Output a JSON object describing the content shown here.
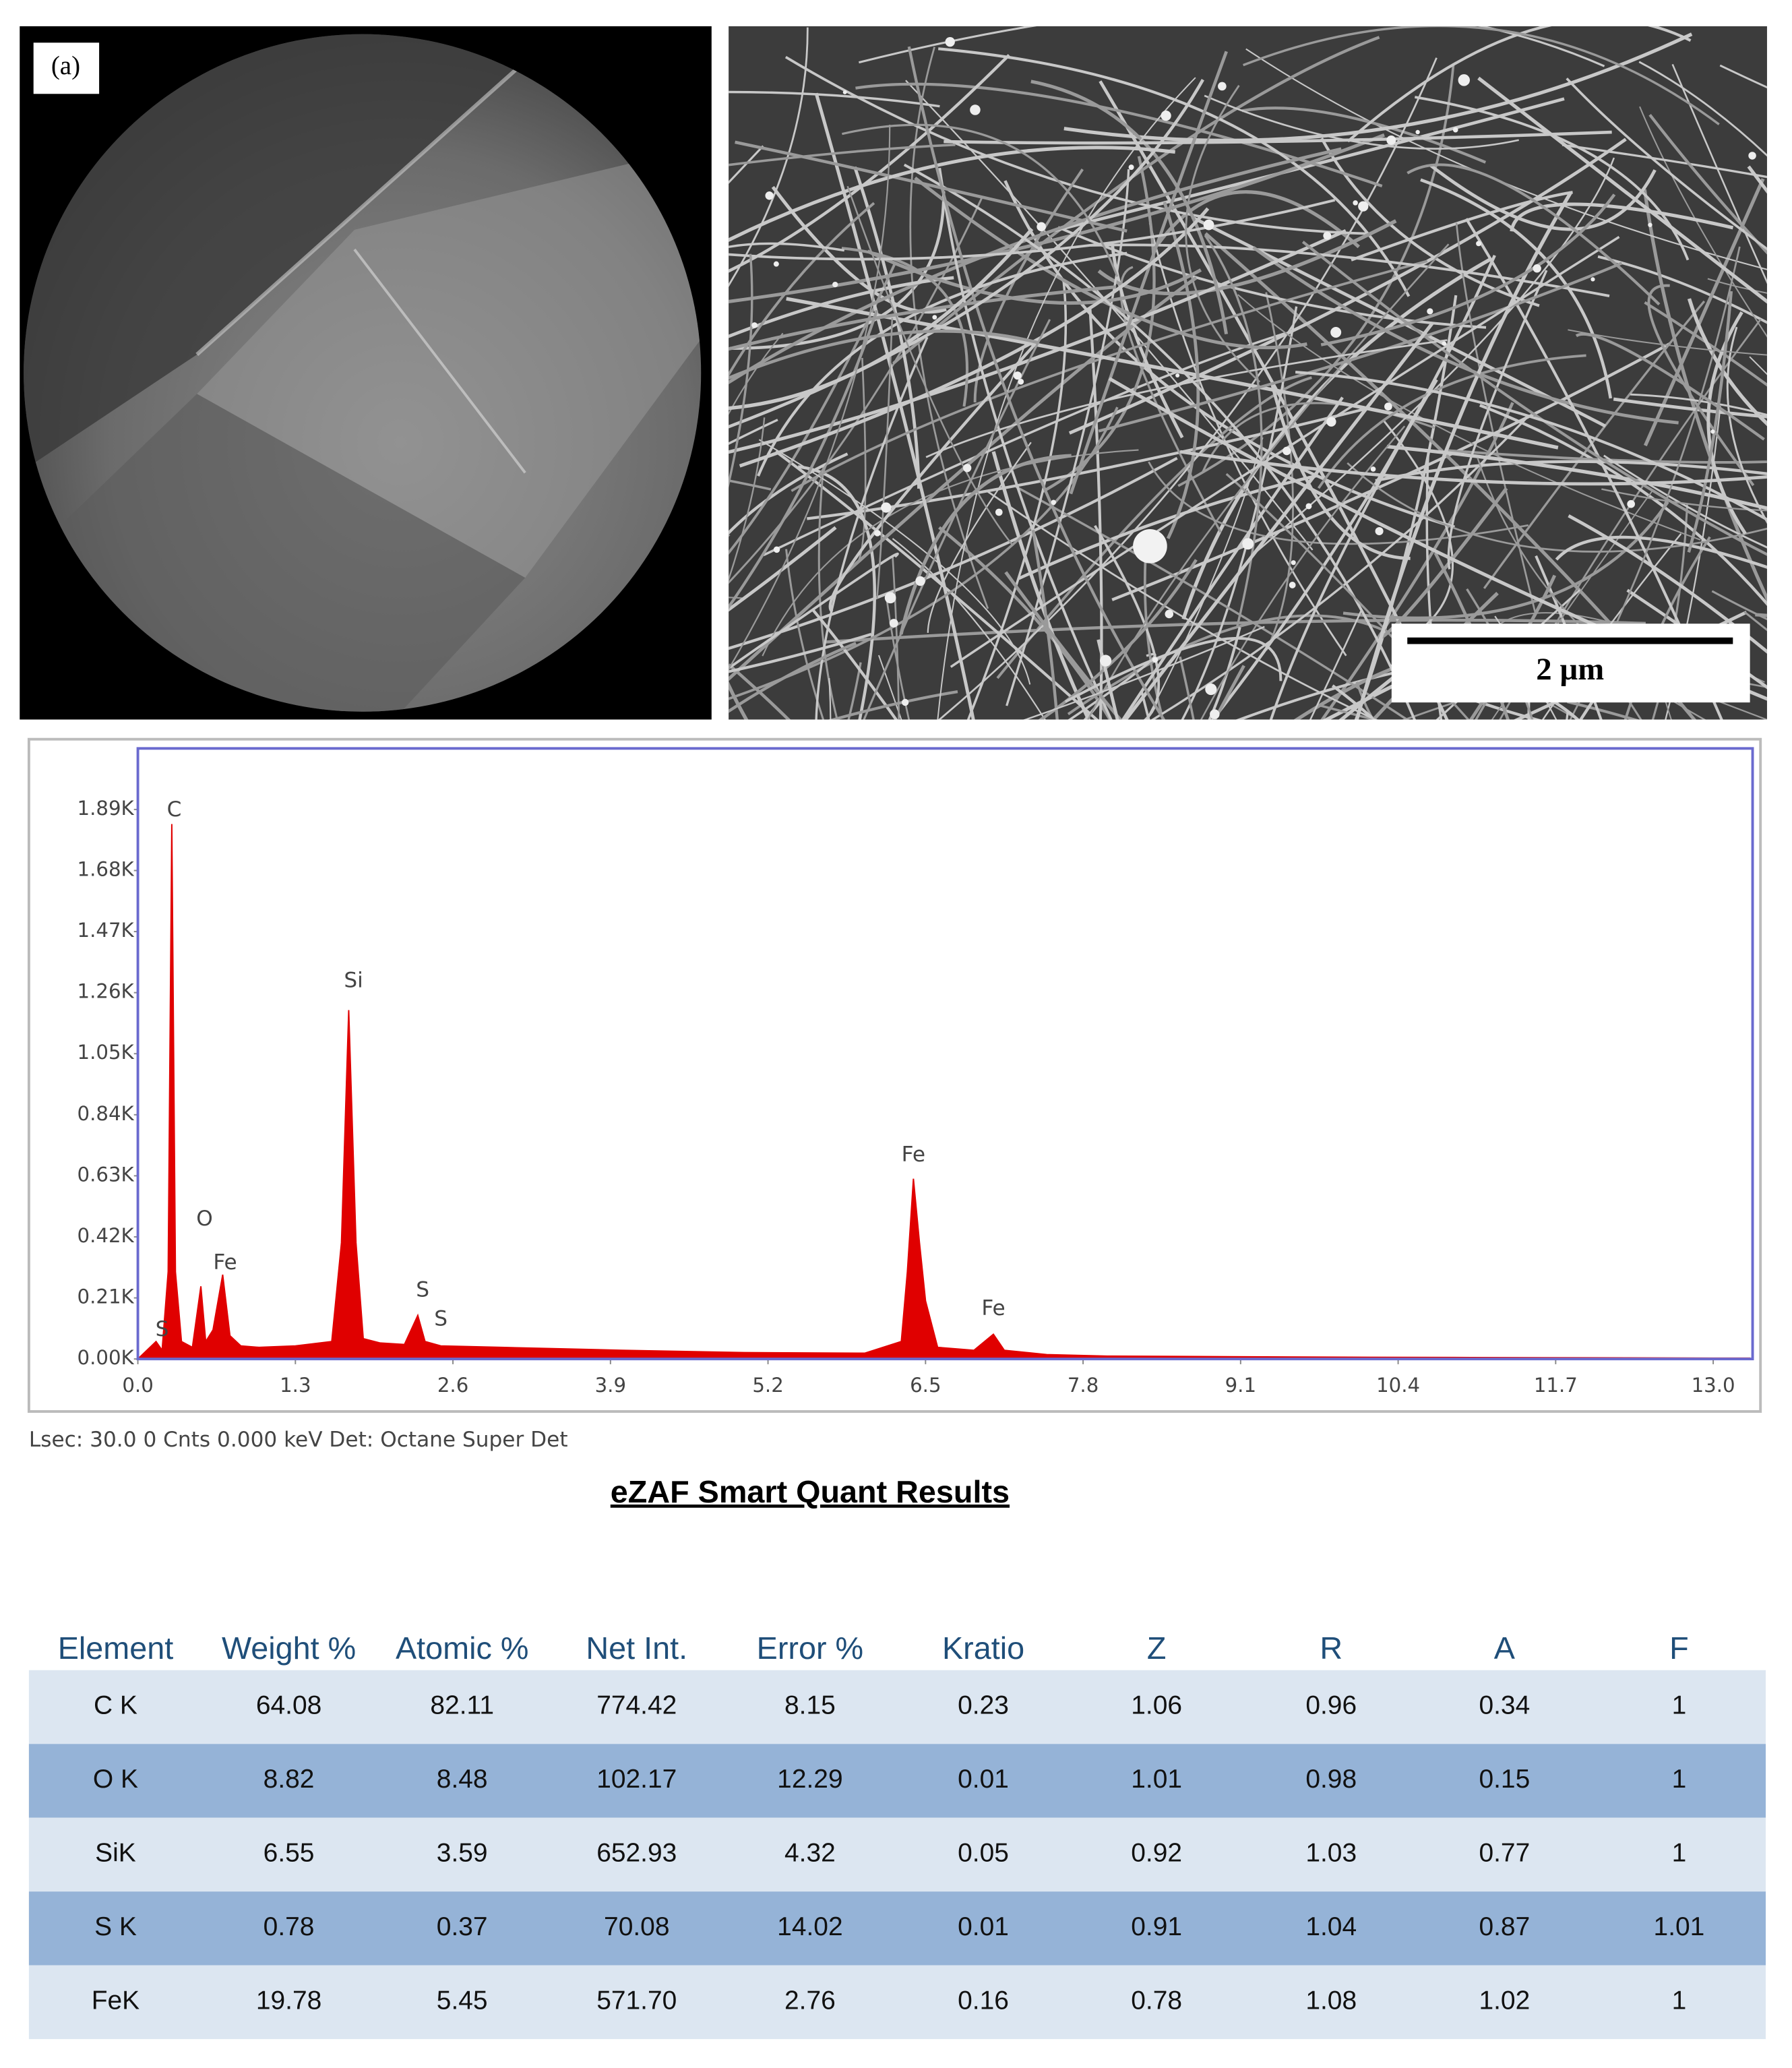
{
  "panel_label": "(a)",
  "scale_bar": "2 µm",
  "chart_data": {
    "type": "area",
    "caption": "Lsec: 30.0 0 Cnts  0.000 keV Det: Octane Super Det",
    "x": [
      0.0,
      0.15,
      0.2,
      0.25,
      0.28,
      0.31,
      0.36,
      0.45,
      0.52,
      0.56,
      0.62,
      0.7,
      0.76,
      0.85,
      1.0,
      1.3,
      1.6,
      1.68,
      1.74,
      1.8,
      1.86,
      2.0,
      2.2,
      2.31,
      2.37,
      2.5,
      3.0,
      4.0,
      5.0,
      6.0,
      6.3,
      6.35,
      6.4,
      6.45,
      6.5,
      6.6,
      6.9,
      7.06,
      7.15,
      7.5,
      8.0,
      9.0,
      10.0,
      11.0,
      12.0,
      13.0,
      13.3
    ],
    "series": [
      {
        "name": "Spectrum",
        "color": "#e00000",
        "values": [
          0,
          60,
          30,
          300,
          1840,
          300,
          60,
          40,
          250,
          60,
          100,
          290,
          80,
          45,
          40,
          45,
          60,
          400,
          1200,
          400,
          70,
          55,
          50,
          150,
          60,
          45,
          40,
          30,
          22,
          20,
          60,
          300,
          620,
          400,
          200,
          40,
          30,
          85,
          30,
          15,
          10,
          8,
          6,
          5,
          4,
          3,
          3
        ]
      }
    ],
    "xlim": [
      0,
      13.325
    ],
    "ylim": [
      0,
      2100
    ],
    "xticks": [
      {
        "value": 0,
        "label": "0.0"
      },
      1.3,
      2.6,
      3.9,
      5.2,
      6.5,
      7.8,
      9.1,
      10.4,
      11.7,
      {
        "value": 13,
        "label": "13.0"
      }
    ],
    "yticks": [
      {
        "value": 0,
        "label": "0.00K"
      },
      {
        "value": 210,
        "label": "0.21K"
      },
      {
        "value": 420,
        "label": "0.42K"
      },
      {
        "value": 630,
        "label": "0.63K"
      },
      {
        "value": 840,
        "label": "0.84K"
      },
      {
        "value": 1050,
        "label": "1.05K"
      },
      {
        "value": 1260,
        "label": "1.26K"
      },
      {
        "value": 1470,
        "label": "1.47K"
      },
      {
        "value": 1680,
        "label": "1.68K"
      },
      {
        "value": 1890,
        "label": "1.89K"
      }
    ],
    "annotations": [
      {
        "text": "S",
        "x": 0.2,
        "y": 100
      },
      {
        "text": "C",
        "x": 0.3,
        "y": 1887
      },
      {
        "text": "O",
        "x": 0.55,
        "y": 480
      },
      {
        "text": "Fe",
        "x": 0.72,
        "y": 330
      },
      {
        "text": "Si",
        "x": 1.78,
        "y": 1300
      },
      {
        "text": "S",
        "x": 2.35,
        "y": 235
      },
      {
        "text": "S",
        "x": 2.5,
        "y": 136
      },
      {
        "text": "Fe",
        "x": 6.4,
        "y": 700
      },
      {
        "text": "Fe",
        "x": 7.06,
        "y": 172
      }
    ]
  },
  "table": {
    "title": "eZAF Smart Quant Results",
    "header": [
      "Element",
      "Weight %",
      "Atomic %",
      "Net Int.",
      "Error %",
      "Kratio",
      "Z",
      "R",
      "A",
      "F"
    ],
    "rows": [
      [
        "C K",
        "64.08",
        "82.11",
        "774.42",
        "8.15",
        "0.23",
        "1.06",
        "0.96",
        "0.34",
        "1"
      ],
      [
        "O K",
        "8.82",
        "8.48",
        "102.17",
        "12.29",
        "0.01",
        "1.01",
        "0.98",
        "0.15",
        "1"
      ],
      [
        "SiK",
        "6.55",
        "3.59",
        "652.93",
        "4.32",
        "0.05",
        "0.92",
        "1.03",
        "0.77",
        "1"
      ],
      [
        "S K",
        "0.78",
        "0.37",
        "70.08",
        "14.02",
        "0.01",
        "0.91",
        "1.04",
        "0.87",
        "1.01"
      ],
      [
        "FeK",
        "19.78",
        "5.45",
        "571.70",
        "2.76",
        "0.16",
        "0.78",
        "1.08",
        "1.02",
        "1"
      ]
    ]
  }
}
